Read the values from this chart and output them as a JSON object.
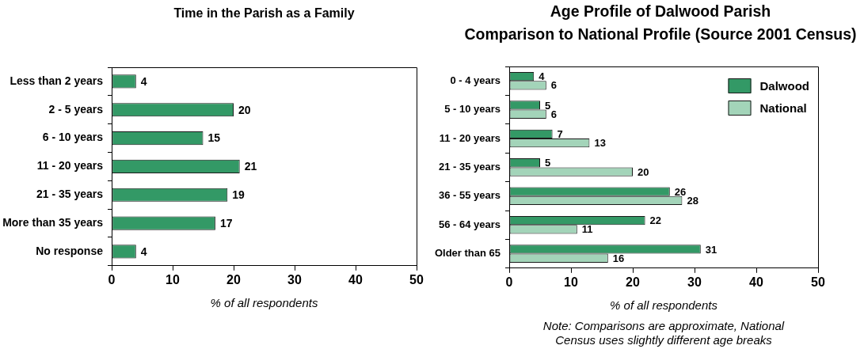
{
  "chart_data": [
    {
      "type": "bar",
      "orientation": "horizontal",
      "title": "Time in the Parish as a Family",
      "xlabel": "% of all respondents",
      "categories": [
        "Less than 2 years",
        "2 - 5 years",
        "6 - 10 years",
        "11 - 20 years",
        "21 - 35 years",
        "More than 35 years",
        "No response"
      ],
      "values": [
        4,
        20,
        15,
        21,
        19,
        17,
        4
      ],
      "color": "#339966",
      "xlim": [
        0,
        50
      ],
      "xticks": [
        0,
        10,
        20,
        30,
        40,
        50
      ],
      "data_labels": true
    },
    {
      "type": "bar",
      "orientation": "horizontal",
      "title": "Age Profile of Dalwood Parish",
      "subtitle": "Comparison to National Profile (Source 2001 Census)",
      "xlabel": "% of all respondents",
      "categories": [
        "0 - 4 years",
        "5 - 10 years",
        "11 - 20 years",
        "21 - 35 years",
        "36 - 55 years",
        "56 - 64 years",
        "Older than 65"
      ],
      "series": [
        {
          "name": "Dalwood",
          "color": "#339966",
          "values": [
            4,
            5,
            7,
            5,
            26,
            22,
            31
          ]
        },
        {
          "name": "National",
          "color": "#a3d4b9",
          "values": [
            6,
            6,
            13,
            20,
            28,
            11,
            16
          ]
        }
      ],
      "xlim": [
        0,
        50
      ],
      "xticks": [
        0,
        10,
        20,
        30,
        40,
        50
      ],
      "data_labels": true,
      "legend": "top right",
      "annotations": [
        "Note: Comparisons are approximate, National Census uses slightly different age breaks"
      ]
    }
  ]
}
